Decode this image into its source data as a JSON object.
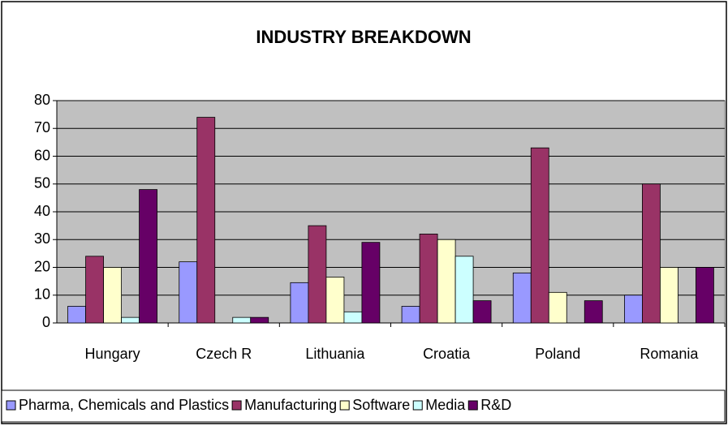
{
  "chart_data": {
    "type": "bar",
    "title": "INDUSTRY BREAKDOWN",
    "categories": [
      "Hungary",
      "Czech R",
      "Lithuania",
      "Croatia",
      "Poland",
      "Romania"
    ],
    "series": [
      {
        "name": "Pharma, Chemicals and Plastics",
        "color": "#9999ff",
        "values": [
          6,
          22,
          14.5,
          6,
          18,
          10
        ]
      },
      {
        "name": "Manufacturing",
        "color": "#993366",
        "values": [
          24,
          74,
          35,
          32,
          63,
          50
        ]
      },
      {
        "name": "Software",
        "color": "#ffffcc",
        "values": [
          20,
          0,
          16.5,
          30,
          11,
          20
        ]
      },
      {
        "name": "Media",
        "color": "#ccffff",
        "values": [
          2,
          2,
          4,
          24,
          0,
          0
        ]
      },
      {
        "name": "R&D",
        "color": "#660066",
        "values": [
          48,
          2,
          29,
          8,
          8,
          20
        ]
      }
    ],
    "ylim": [
      0,
      80
    ],
    "yticks": [
      0,
      10,
      20,
      30,
      40,
      50,
      60,
      70,
      80
    ],
    "grid": true,
    "legend": "bottom"
  }
}
